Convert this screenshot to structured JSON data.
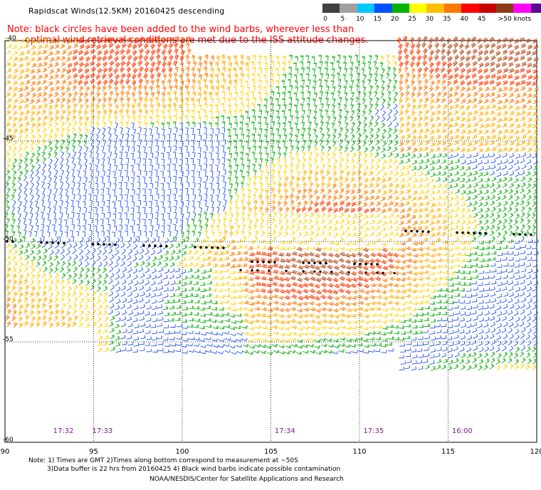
{
  "header": {
    "title": "Rapidscat Winds(12.5KM) 20160425 descending",
    "note_line1": "Note: black circles have been added to the wind barbs, wherever less than",
    "note_line2": "      optimal wind retrieval conditions are met due to the ISS attitude changes."
  },
  "legend": {
    "units": ">50 knots",
    "labels": [
      "0",
      "5",
      "10",
      "15",
      "20",
      "25",
      "30",
      "35",
      "40",
      "45",
      ">50 knots"
    ],
    "colors": [
      "#404040",
      "#a0a0a0",
      "#00c8ff",
      "#0050ff",
      "#00b400",
      "#ffff00",
      "#ffbe00",
      "#ff7800",
      "#ff0000",
      "#c80000",
      "#8c3c14",
      "#ff00ff",
      "#5a0a8c"
    ]
  },
  "map": {
    "lon_labels": [
      "90",
      "95",
      "100",
      "105",
      "110",
      "115",
      "120"
    ],
    "lat_labels": [
      "-40",
      "-45",
      "-50",
      "-55",
      "-60"
    ],
    "lon_range": [
      90,
      120
    ],
    "lat_range": [
      -60,
      -40
    ],
    "times": [
      {
        "label": "17:32",
        "lon": 93.2
      },
      {
        "label": "17:33",
        "lon": 95.4
      },
      {
        "label": "17:34",
        "lon": 105.7
      },
      {
        "label": "17:35",
        "lon": 110.7
      },
      {
        "label": "16:00",
        "lon": 115.7
      }
    ]
  },
  "footer": {
    "line1": "Note: 1) Times are GMT 2)Times along bottom correspond to measurement at ~50S",
    "line2": "3)Data buffer is 22 hrs from 20160425 4) Black wind barbs indicate possible contamination",
    "line3": "NOAA/NESDIS/Center for Satellite Applications and Research"
  }
}
